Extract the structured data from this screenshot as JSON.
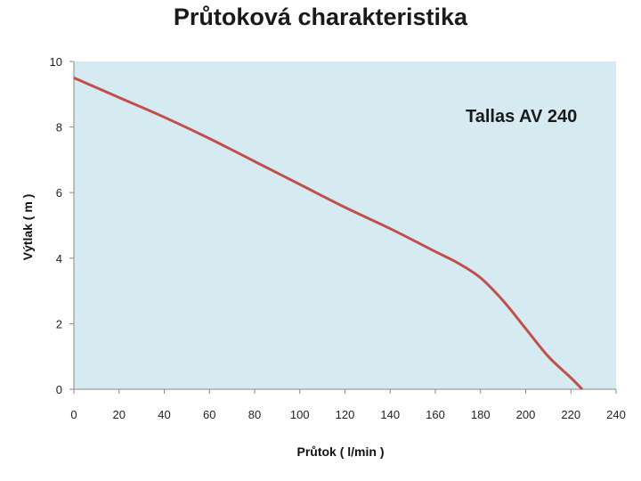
{
  "chart_data": {
    "type": "line",
    "title": "Průtoková charakteristika",
    "xlabel": "Průtok ( l/min )",
    "ylabel": "Výtlak ( m )",
    "annotation": "Tallas AV 240",
    "xlim": [
      0,
      240
    ],
    "ylim": [
      0,
      10
    ],
    "xticks": [
      0,
      20,
      40,
      60,
      80,
      100,
      120,
      140,
      160,
      180,
      200,
      220,
      240
    ],
    "yticks": [
      0,
      2,
      4,
      6,
      8,
      10
    ],
    "grid": false,
    "colors": {
      "plot_bg": "#d6ebf1",
      "line": "#c0504d"
    },
    "series": [
      {
        "x": [
          0,
          20,
          40,
          60,
          80,
          100,
          120,
          140,
          160,
          170,
          180,
          190,
          200,
          210,
          220,
          225
        ],
        "y": [
          9.5,
          8.9,
          8.3,
          7.65,
          6.95,
          6.25,
          5.55,
          4.9,
          4.2,
          3.85,
          3.4,
          2.7,
          1.85,
          1.0,
          0.35,
          0.0
        ]
      }
    ]
  }
}
